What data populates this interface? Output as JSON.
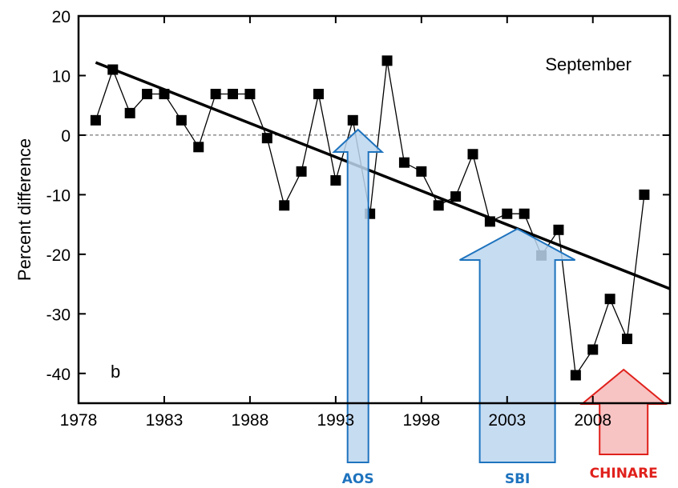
{
  "chart_data": {
    "type": "line",
    "ylabel": "Percent difference",
    "month_label": "September",
    "panel_label": "b",
    "xlim": [
      1978,
      2012.5
    ],
    "ylim": [
      -45,
      20
    ],
    "x_ticks": [
      1978,
      1983,
      1988,
      1993,
      1998,
      2003,
      2008
    ],
    "y_ticks": [
      20,
      10,
      0,
      -10,
      -20,
      -30,
      -40
    ],
    "zero_line": "dashed",
    "series": [
      {
        "marker": "square",
        "color": "#000000",
        "x": [
          1979,
          1980,
          1981,
          1982,
          1983,
          1984,
          1985,
          1986,
          1987,
          1988,
          1989,
          1990,
          1991,
          1992,
          1993,
          1994,
          1995,
          1996,
          1997,
          1998,
          1999,
          2000,
          2001,
          2002,
          2003,
          2004,
          2005,
          2006,
          2007,
          2008,
          2009,
          2010,
          2011
        ],
        "y": [
          2.5,
          11,
          3.7,
          6.9,
          6.9,
          2.5,
          -2,
          6.9,
          6.9,
          6.9,
          -0.5,
          -11.8,
          -6.1,
          6.9,
          -7.6,
          2.5,
          -13.2,
          12.5,
          -4.6,
          -6.1,
          -11.8,
          -10.3,
          -3.2,
          -14.5,
          -13.2,
          -13.2,
          -20.2,
          -15.9,
          -40.3,
          -36,
          -27.5,
          -34.2,
          -10
        ]
      }
    ],
    "trend": {
      "x": [
        1979,
        2012.5
      ],
      "y": [
        12.2,
        -25.8
      ],
      "color": "#000000"
    },
    "annotations": [
      {
        "label": "AOS",
        "x": 1994.3,
        "color": "#1e73be",
        "fill": "#bcd6ee",
        "style": "thin"
      },
      {
        "label": "SBI",
        "x": 2003.6,
        "color": "#1e73be",
        "fill": "#bcd6ee",
        "style": "wide"
      },
      {
        "label": "CHINARE",
        "x": 2009.8,
        "color": "#e0201b",
        "fill": "#f7b9b9",
        "style": "wide"
      }
    ]
  }
}
